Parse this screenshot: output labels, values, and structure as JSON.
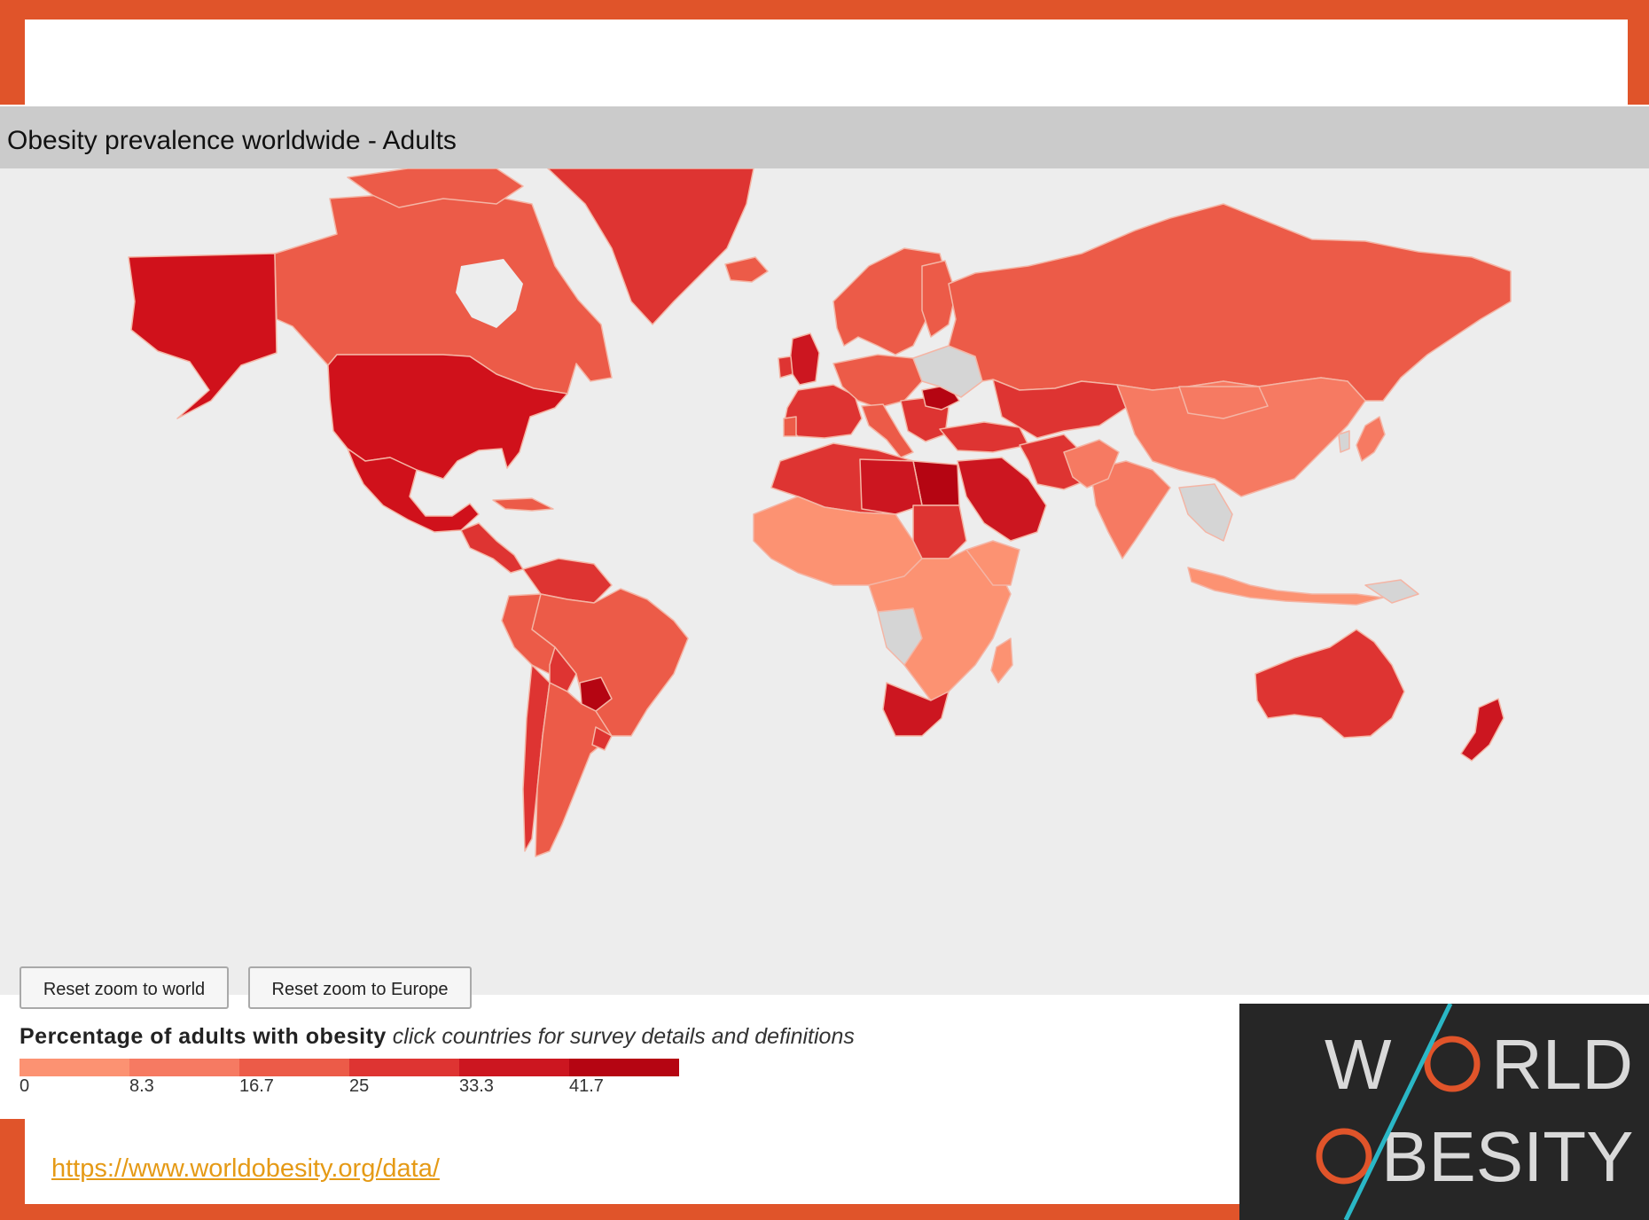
{
  "panel": {
    "title": "Obesity prevalence worldwide - Adults"
  },
  "buttons": {
    "reset_world": "Reset zoom to world",
    "reset_europe": "Reset zoom to Europe"
  },
  "legend": {
    "title_bold": "Percentage of adults with obesity",
    "title_italic": "click countries for survey details and definitions",
    "ticks": [
      "0",
      "8.3",
      "16.7",
      "25",
      "33.3",
      "41.7"
    ],
    "colors": [
      "#fc9272",
      "#f67a62",
      "#ec5b48",
      "#de3432",
      "#cc1620",
      "#b50512"
    ]
  },
  "source": {
    "url_text": "https://www.worldobesity.org/data/"
  },
  "logo": {
    "line1": "WORLD",
    "line2": "OBESITY"
  },
  "map_colors": {
    "ocean": "#ededed",
    "no_data": "#d5d5d5",
    "border": "#f3b3a3"
  }
}
